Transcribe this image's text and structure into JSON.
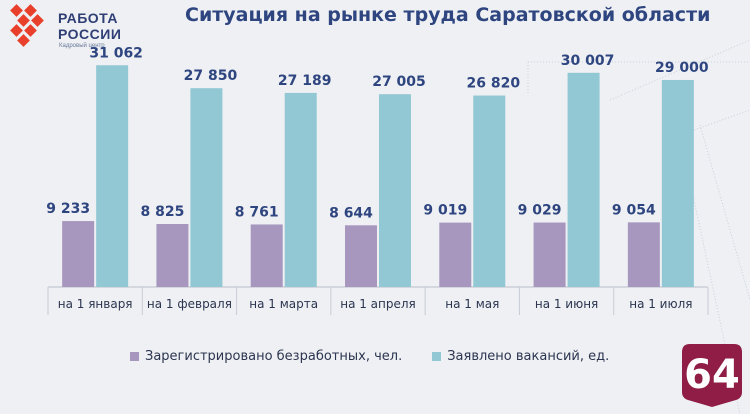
{
  "header": {
    "logo_line1": "РАБОТА",
    "logo_line2": "РОССИИ",
    "logo_sub": "Кадровый центр",
    "title": "Ситуация на рынке труда Саратовской области"
  },
  "badge": {
    "text": "64"
  },
  "colors": {
    "unemployed": "#a797bf",
    "vacancies": "#91c8d4",
    "title": "#2e4580",
    "badge": "#8f1d45",
    "logo_accent": "#e8402a"
  },
  "legend": {
    "unemployed_label": "Зарегистрировано безработных, чел.",
    "vacancies_label": "Заявлено вакансий, ед."
  },
  "chart_data": {
    "type": "bar",
    "title": "Ситуация на рынке труда Саратовской области",
    "categories": [
      "на 1 января",
      "на 1 февраля",
      "на 1 марта",
      "на 1 апреля",
      "на 1 мая",
      "на 1 июня",
      "на 1 июля"
    ],
    "series": [
      {
        "name": "Зарегистрировано безработных, чел.",
        "values": [
          9233,
          8825,
          8761,
          8644,
          9019,
          9029,
          9054
        ],
        "labels": [
          "9 233",
          "8 825",
          "8 761",
          "8 644",
          "9 019",
          "9 029",
          "9 054"
        ]
      },
      {
        "name": "Заявлено вакансий, ед.",
        "values": [
          31062,
          27850,
          27189,
          27005,
          26820,
          30007,
          29000
        ],
        "labels": [
          "31 062",
          "27 850",
          "27 189",
          "27 005",
          "26 820",
          "30 007",
          "29 000"
        ]
      }
    ],
    "ylim": [
      0,
      36000
    ],
    "grid": false,
    "legend_position": "bottom"
  }
}
